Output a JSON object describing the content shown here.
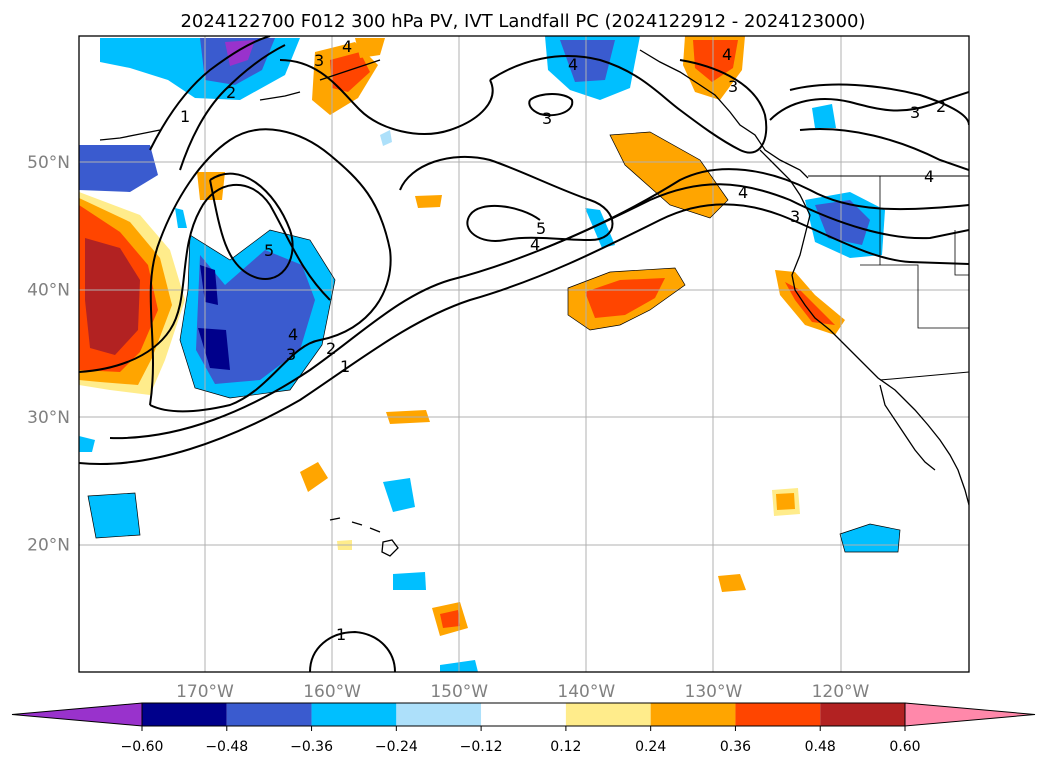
{
  "title": "2024122700 F012 300 hPa PV, IVT Landfall PC (2024122912 - 2024123000)",
  "lat_labels": [
    {
      "deg": 50,
      "text": "50°N"
    },
    {
      "deg": 40,
      "text": "40°N"
    },
    {
      "deg": 30,
      "text": "30°N"
    },
    {
      "deg": 20,
      "text": "20°N"
    }
  ],
  "lon_labels": [
    {
      "deg": -170,
      "text": "170°W"
    },
    {
      "deg": -160,
      "text": "160°W"
    },
    {
      "deg": -150,
      "text": "150°W"
    },
    {
      "deg": -140,
      "text": "140°W"
    },
    {
      "deg": -130,
      "text": "130°W"
    },
    {
      "deg": -120,
      "text": "120°W"
    }
  ],
  "colorbar": {
    "colors": [
      "#9932CC",
      "#00008B",
      "#3A5BCF",
      "#00BFFF",
      "#ADE0FA",
      "#FFFFFF",
      "#FFEC8B",
      "#FFA500",
      "#FF4500",
      "#B22222",
      "#FF88AA"
    ],
    "labels": [
      "−0.60",
      "−0.48",
      "−0.36",
      "−0.24",
      "−0.12",
      "0.12",
      "0.24",
      "0.36",
      "0.48",
      "0.60"
    ]
  },
  "contour_labels": [
    {
      "text": "1"
    },
    {
      "text": "2"
    },
    {
      "text": "3"
    },
    {
      "text": "4"
    },
    {
      "text": "5"
    },
    {
      "text": "3"
    },
    {
      "text": "4"
    },
    {
      "text": "2"
    },
    {
      "text": "1"
    },
    {
      "text": "4"
    },
    {
      "text": "3"
    },
    {
      "text": "4"
    },
    {
      "text": "3"
    },
    {
      "text": "2"
    },
    {
      "text": "4"
    },
    {
      "text": "3"
    },
    {
      "text": "1"
    },
    {
      "text": "5"
    },
    {
      "text": "4"
    },
    {
      "text": "4"
    },
    {
      "text": "3"
    }
  ]
}
